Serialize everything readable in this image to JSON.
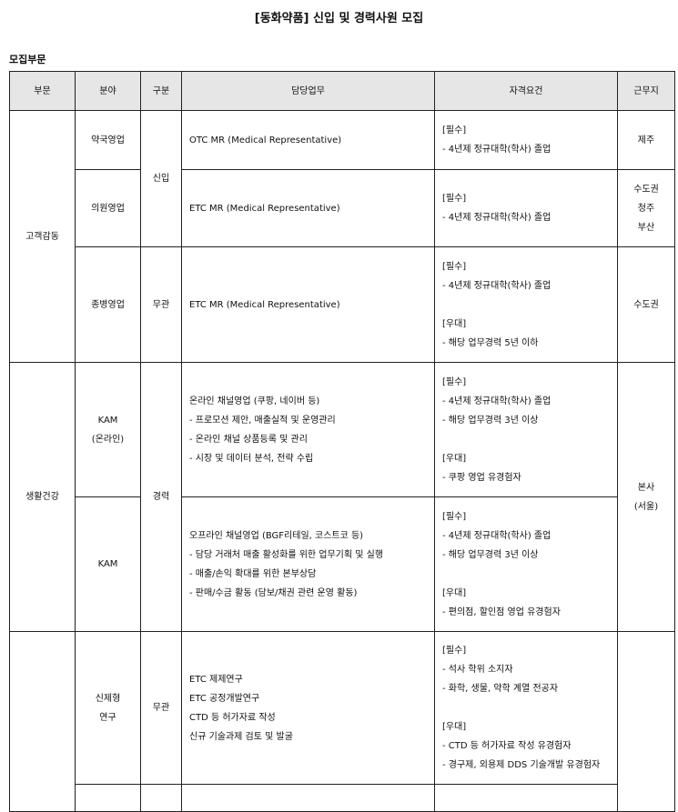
{
  "title": "[동화약품] 신입 및 경력사원 모집",
  "section_label": "모집부문",
  "table": {
    "headers": [
      "부문",
      "분야",
      "구분",
      "담당업무",
      "자격요건",
      "근무지"
    ],
    "rows": [
      {
        "division": "고객감동",
        "field": "약국영업",
        "type": "신입",
        "duties": "OTC MR (Medical Representative)",
        "requirements": "[필수]\n- 4년제 정규대학(학사) 졸업",
        "location": "제주"
      },
      {
        "field": "의원영업",
        "duties": "ETC MR (Medical Representative)",
        "requirements": "[필수]\n- 4년제 정규대학(학사) 졸업",
        "location": "수도권\n청주\n부산"
      },
      {
        "field": "종병영업",
        "type": "무관",
        "duties": "ETC MR (Medical Representative)",
        "requirements": "[필수]\n- 4년제 정규대학(학사) 졸업\n\n[우대]\n- 해당 업무경력 5년 이하",
        "location": "수도권"
      },
      {
        "division": "생활건강",
        "field": "KAM\n(온라인)",
        "type": "경력",
        "duties": "온라인 채널영업 (쿠팡, 네이버 등)\n- 프로모션 제안, 매출실적 및 운영관리\n- 온라인 채널 상품등록 및 관리\n- 시장 및 데이터 분석, 전략 수립",
        "requirements": "[필수]\n- 4년제 정규대학(학사) 졸업\n- 해당 업무경력 3년 이상\n\n[우대]\n- 쿠팡 영업 유경험자",
        "location": "본사\n(서울)"
      },
      {
        "field": "KAM",
        "duties": "오프라인 채널영업 (BGF리테일, 코스트코 등)\n- 담당 거래처 매출 활성화를 위한 업무기획 및 실행\n- 매출/손익 확대를 위한 본부상담\n- 판매/수금 활동 (담보/채권 관련 운영 활동)",
        "requirements": "[필수]\n- 4년제 정규대학(학사) 졸업\n- 해당 업무경력 3년 이상\n\n[우대]\n- 편의점, 할인점 영업 유경험자"
      },
      {
        "division": "",
        "field": "신제형\n연구",
        "type": "무관",
        "duties": "ETC 제제연구\nETC 공정개발연구\nCTD 등 허가자료 작성\n신규 기술과제 검토 및 발굴",
        "requirements": "[필수]\n- 석사 학위 소지자\n- 화학, 생물, 약학 계열 전공자\n\n[우대]\n- CTD 등 허가자료 작성 유경험자\n- 경구제, 외용제 DDS 기술개발 유경험자",
        "location": ""
      }
    ]
  }
}
